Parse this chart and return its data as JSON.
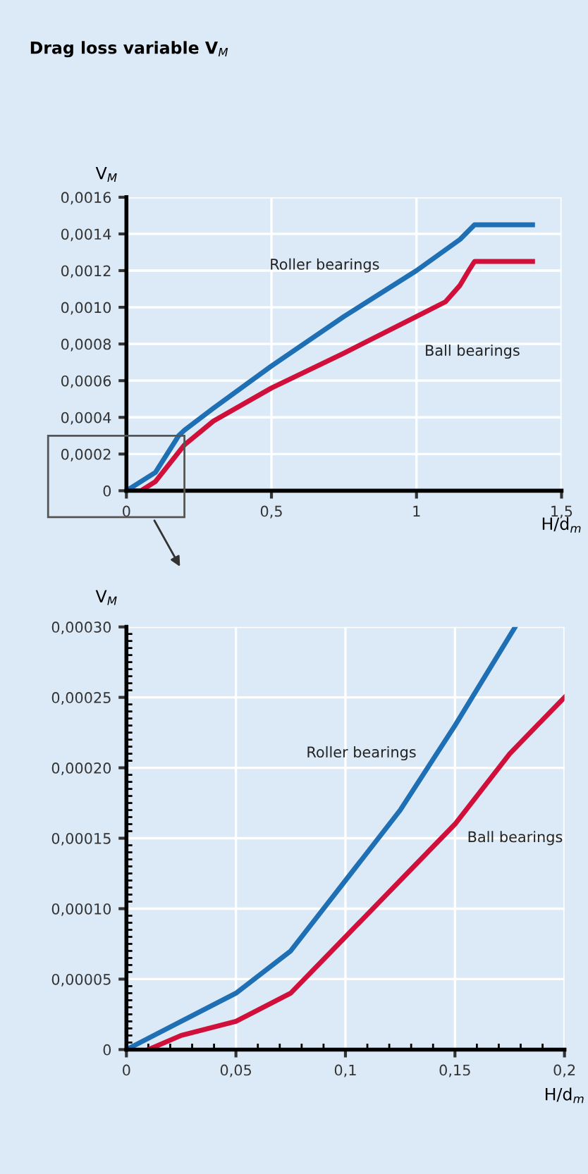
{
  "chart_data": [
    {
      "type": "line",
      "title": "Drag loss variable V$_{M}$",
      "xlabel": "H/d$_{m}$",
      "ylabel": "V$_{M}$",
      "xlim": [
        0,
        1.5
      ],
      "xticks": [
        0,
        {
          "value": 0.5,
          "label": "0,5"
        },
        1,
        {
          "value": 1.5,
          "label": "1,5"
        }
      ],
      "ylim": [
        0,
        0.0016
      ],
      "yticks": [
        0,
        {
          "value": 0.0002,
          "label": "0,0002"
        },
        {
          "value": 0.0004,
          "label": "0,0004"
        },
        {
          "value": 0.0006,
          "label": "0,0006"
        },
        {
          "value": 0.0008,
          "label": "0,0008"
        },
        {
          "value": 0.001,
          "label": "0,0010"
        },
        {
          "value": 0.0012,
          "label": "0,0012"
        },
        {
          "value": 0.0014,
          "label": "0,0014"
        },
        {
          "value": 0.0016,
          "label": "0,0016"
        }
      ],
      "grid": true,
      "legend": false,
      "marker": "none",
      "line_style": "solid",
      "series": [
        {
          "name": "Roller bearings",
          "color": "#1f6fb4",
          "x": [
            0,
            0.05,
            0.1,
            0.18,
            0.2,
            0.3,
            0.5,
            0.75,
            1.0,
            1.15,
            1.2,
            1.4
          ],
          "values": [
            0,
            5e-05,
            0.0001,
            0.0003,
            0.00033,
            0.00045,
            0.00068,
            0.00095,
            0.0012,
            0.00137,
            0.00145,
            0.00145
          ]
        },
        {
          "name": "Ball bearings",
          "color": "#d0103a",
          "x": [
            0,
            0.05,
            0.1,
            0.2,
            0.3,
            0.5,
            0.75,
            1.0,
            1.1,
            1.15,
            1.18,
            1.2,
            1.4
          ],
          "values": [
            0,
            0,
            5e-05,
            0.00025,
            0.00038,
            0.00056,
            0.00075,
            0.00095,
            0.00103,
            0.00112,
            0.0012,
            0.00125,
            0.00125
          ]
        }
      ]
    },
    {
      "type": "line",
      "xlabel": "H/d$_{m}$",
      "ylabel": "V$_{M}$",
      "xlim": [
        0,
        0.2
      ],
      "xticks": [
        0,
        {
          "value": 0.05,
          "label": "0,05"
        },
        {
          "value": 0.1,
          "label": "0,1"
        },
        {
          "value": 0.15,
          "label": "0,15"
        },
        {
          "value": 0.2,
          "label": "0,2"
        }
      ],
      "ylim": [
        0,
        0.0003
      ],
      "yticks": [
        0,
        {
          "value": 5e-05,
          "label": "0,00005"
        },
        {
          "value": 0.0001,
          "label": "0,00010"
        },
        {
          "value": 0.00015,
          "label": "0,00015"
        },
        {
          "value": 0.0002,
          "label": "0,00020"
        },
        {
          "value": 0.00025,
          "label": "0,00025"
        },
        {
          "value": 0.0003,
          "label": "0,00030"
        }
      ],
      "grid": true,
      "legend": false,
      "marker": "none",
      "line_style": "solid",
      "series": [
        {
          "name": "Roller bearings",
          "color": "#1f6fb4",
          "x": [
            0,
            0.025,
            0.05,
            0.075,
            0.1,
            0.125,
            0.15,
            0.1775
          ],
          "values": [
            0,
            2e-05,
            4e-05,
            7e-05,
            0.00012,
            0.00017,
            0.00023,
            0.0003
          ]
        },
        {
          "name": "Ball bearings",
          "color": "#d0103a",
          "x": [
            0.01,
            0.025,
            0.05,
            0.075,
            0.1,
            0.125,
            0.15,
            0.175,
            0.2
          ],
          "values": [
            0,
            1e-05,
            2e-05,
            4e-05,
            8e-05,
            0.00012,
            0.00016,
            0.00021,
            0.00025
          ]
        }
      ]
    }
  ]
}
